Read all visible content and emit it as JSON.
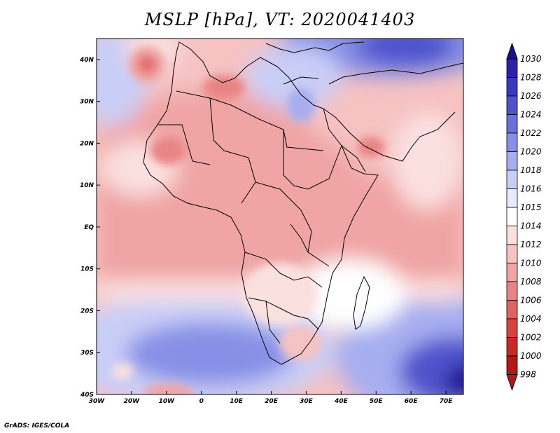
{
  "title": "MSLP [hPa], VT: 2020041403",
  "credit": "GrADS: IGES/COLA",
  "colorbar": {
    "levels": [
      "1030",
      "1028",
      "1026",
      "1024",
      "1022",
      "1020",
      "1018",
      "1016",
      "1015",
      "1014",
      "1012",
      "1010",
      "1008",
      "1006",
      "1004",
      "1002",
      "1000",
      "998"
    ],
    "colors": [
      "#1d0e8f",
      "#2b22a8",
      "#3a38bd",
      "#4f52cc",
      "#6a70da",
      "#8790e6",
      "#a7aef0",
      "#c9cef7",
      "#e8eafd",
      "#ffffff",
      "#fbe0e0",
      "#f6c2c2",
      "#f0a4a4",
      "#e98484",
      "#e06262",
      "#d54242",
      "#c82828",
      "#b51616"
    ]
  },
  "axes": {
    "x_labels": [
      "30W",
      "20W",
      "10W",
      "0",
      "10E",
      "20E",
      "30E",
      "40E",
      "50E",
      "60E",
      "70E"
    ],
    "y_labels": [
      "40N",
      "30N",
      "20N",
      "10N",
      "EQ",
      "10S",
      "20S",
      "30S",
      "40S"
    ]
  },
  "chart_data": {
    "type": "heatmap",
    "title": "MSLP [hPa], VT: 2020041403",
    "variable": "MSLP",
    "units": "hPa",
    "valid_time": "2020041403",
    "lon_range": [
      -30,
      75
    ],
    "lat_range": [
      -40,
      45
    ],
    "x_ticks": [
      -30,
      -20,
      -10,
      0,
      10,
      20,
      30,
      40,
      50,
      60,
      70
    ],
    "y_ticks": [
      40,
      30,
      20,
      10,
      0,
      -10,
      -20,
      -30,
      -40
    ],
    "contour_levels": [
      998,
      1000,
      1002,
      1004,
      1006,
      1008,
      1010,
      1012,
      1014,
      1015,
      1016,
      1018,
      1020,
      1022,
      1024,
      1026,
      1028,
      1030
    ],
    "features": [
      {
        "name": "low over Atlantic near Canary Islands",
        "lon": -15.5,
        "lat": 38.5,
        "value": 1004
      },
      {
        "name": "high over eastern Europe / Black Sea",
        "lon": 40,
        "lat": 45,
        "value": 1026
      },
      {
        "name": "high over southern Indian Ocean",
        "lon": 72,
        "lat": -38,
        "value": 1030
      },
      {
        "name": "high over South Atlantic",
        "lon": 0,
        "lat": -30,
        "value": 1022
      }
    ]
  }
}
